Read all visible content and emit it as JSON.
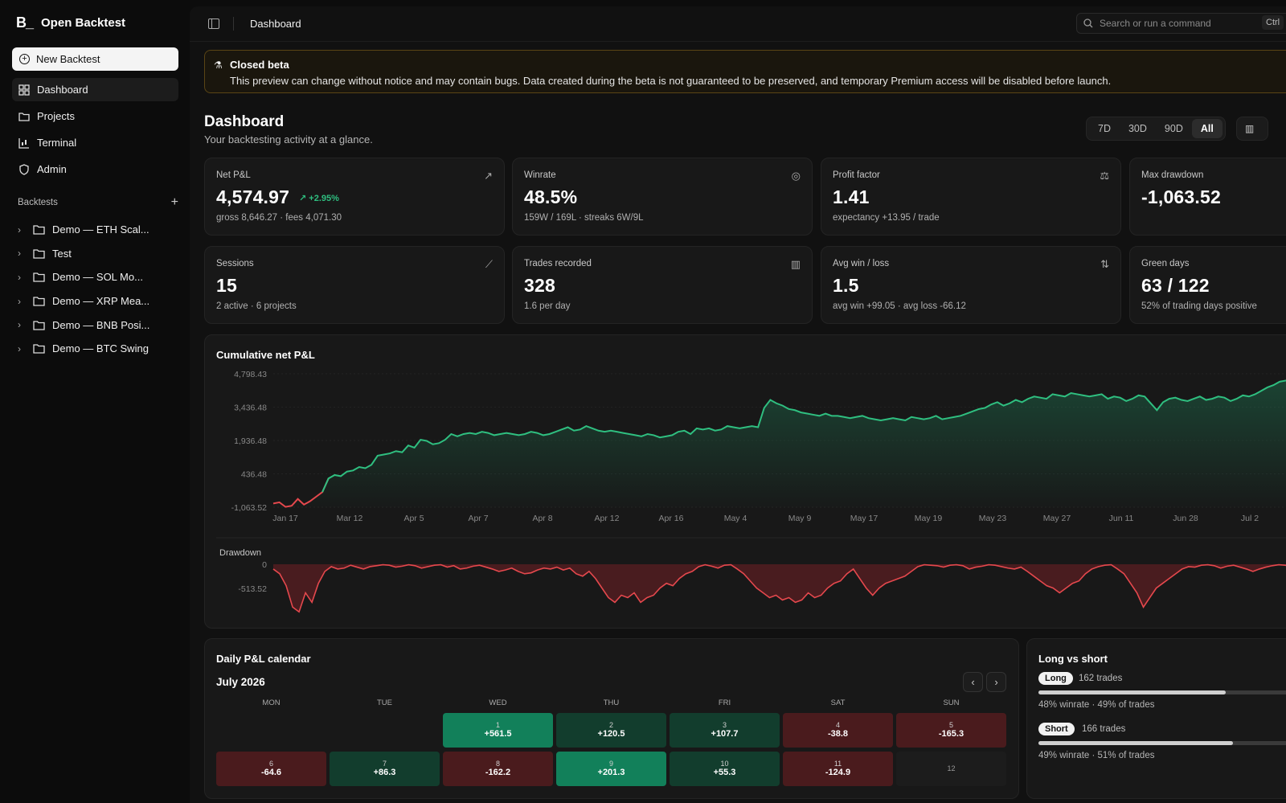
{
  "app": {
    "name": "Open Backtest",
    "logo": "B_"
  },
  "sidebar": {
    "new_backtest": "New Backtest",
    "nav": [
      {
        "label": "Dashboard",
        "icon": "dashboard-icon"
      },
      {
        "label": "Projects",
        "icon": "folder-icon"
      },
      {
        "label": "Terminal",
        "icon": "terminal-chart-icon"
      },
      {
        "label": "Admin",
        "icon": "shield-icon"
      }
    ],
    "backtests_header": "Backtests",
    "backtests": [
      "Demo — ETH Scal...",
      "Test",
      "Demo — SOL Mo...",
      "Demo — XRP Mea...",
      "Demo — BNB Posi...",
      "Demo — BTC Swing"
    ]
  },
  "topbar": {
    "title": "Dashboard",
    "search_placeholder": "Search or run a command",
    "shortcut": "Ctrl"
  },
  "banner": {
    "title": "Closed beta",
    "text": "This preview can change without notice and may contain bugs. Data created during the beta is not guaranteed to be preserved, and temporary Premium access will be disabled before launch."
  },
  "header": {
    "title": "Dashboard",
    "subtitle": "Your backtesting activity at a glance.",
    "ranges": [
      "7D",
      "30D",
      "90D",
      "All"
    ],
    "selected_range": "All"
  },
  "stats": [
    {
      "label": "Net P&L",
      "value": "4,574.97",
      "change": "+2.95%",
      "sub": "gross 8,646.27 · fees 4,071.30",
      "icon": "trend-up-icon"
    },
    {
      "label": "Winrate",
      "value": "48.5%",
      "sub": "159W / 169L · streaks 6W/9L",
      "icon": "target-icon"
    },
    {
      "label": "Profit factor",
      "value": "1.41",
      "sub": "expectancy +13.95 / trade",
      "icon": "scale-icon"
    },
    {
      "label": "Max drawdown",
      "value": "-1,063.52",
      "sub": "",
      "icon": ""
    },
    {
      "label": "Sessions",
      "value": "15",
      "sub": "2 active · 6 projects",
      "icon": "line-chart-icon"
    },
    {
      "label": "Trades recorded",
      "value": "328",
      "sub": "1.6 per day",
      "icon": "candles-icon"
    },
    {
      "label": "Avg win / loss",
      "value": "1.5",
      "sub": "avg win +99.05 · avg loss -66.12",
      "icon": "arrows-updown-icon"
    },
    {
      "label": "Green days",
      "value": "63 / 122",
      "sub": "52% of trading days positive",
      "icon": ""
    }
  ],
  "chart_data": [
    {
      "type": "area",
      "title": "Cumulative net P&L",
      "y_ticks": [
        "4,798.43",
        "3,436.48",
        "1,936.48",
        "436.48",
        "-1,063.52"
      ],
      "x_ticks": [
        "Jan 17",
        "Mar 12",
        "Apr 5",
        "Apr 7",
        "Apr 8",
        "Apr 12",
        "Apr 16",
        "May 4",
        "May 9",
        "May 17",
        "May 19",
        "May 23",
        "May 27",
        "Jun 11",
        "Jun 28",
        "Jul 2"
      ],
      "ylim": [
        -1063.52,
        4798.43
      ],
      "colors": {
        "positive": "#2fbf80",
        "negative": "#e5484d"
      },
      "values": [
        -900,
        -850,
        -1050,
        -1000,
        -700,
        -950,
        -800,
        -600,
        -400,
        200,
        350,
        300,
        500,
        550,
        700,
        650,
        800,
        1200,
        1250,
        1300,
        1400,
        1350,
        1650,
        1550,
        1900,
        1850,
        1700,
        1750,
        1900,
        2150,
        2050,
        2150,
        2200,
        2150,
        2250,
        2200,
        2100,
        2150,
        2200,
        2150,
        2100,
        2150,
        2250,
        2200,
        2100,
        2150,
        2250,
        2350,
        2450,
        2300,
        2350,
        2500,
        2400,
        2300,
        2250,
        2300,
        2250,
        2200,
        2150,
        2100,
        2050,
        2150,
        2100,
        2000,
        2050,
        2100,
        2250,
        2300,
        2150,
        2400,
        2350,
        2400,
        2300,
        2350,
        2500,
        2450,
        2400,
        2450,
        2500,
        2450,
        3300,
        3650,
        3500,
        3400,
        3250,
        3200,
        3100,
        3050,
        3000,
        2950,
        3050,
        2950,
        2950,
        2900,
        2850,
        2900,
        2950,
        2850,
        2800,
        2750,
        2800,
        2850,
        2800,
        2750,
        2900,
        2850,
        2800,
        2850,
        2950,
        2800,
        2850,
        2900,
        2950,
        3050,
        3150,
        3250,
        3300,
        3450,
        3550,
        3400,
        3500,
        3650,
        3550,
        3700,
        3800,
        3750,
        3700,
        3900,
        3850,
        3800,
        3950,
        3900,
        3850,
        3800,
        3850,
        3900,
        3700,
        3800,
        3750,
        3600,
        3700,
        3850,
        3800,
        3500,
        3200,
        3550,
        3700,
        3750,
        3650,
        3600,
        3700,
        3800,
        3650,
        3700,
        3800,
        3750,
        3600,
        3700,
        3850,
        3800,
        3900,
        4050,
        4200,
        4300,
        4450,
        4500,
        4550,
        4600
      ]
    },
    {
      "type": "area",
      "title": "Drawdown",
      "y_ticks": [
        "0",
        "-513.52"
      ],
      "ylim": [
        -1063.52,
        0
      ],
      "colors": {
        "line": "#e5484d"
      },
      "values": [
        -100,
        -200,
        -450,
        -900,
        -1000,
        -600,
        -800,
        -400,
        -150,
        -50,
        -100,
        -80,
        -20,
        -60,
        -100,
        -50,
        -30,
        -10,
        -20,
        -60,
        -40,
        -10,
        -30,
        -80,
        -50,
        -20,
        -10,
        -60,
        -30,
        -100,
        -80,
        -40,
        -20,
        -60,
        -100,
        -150,
        -120,
        -80,
        -150,
        -200,
        -180,
        -120,
        -80,
        -100,
        -60,
        -120,
        -80,
        -200,
        -250,
        -150,
        -300,
        -500,
        -700,
        -800,
        -650,
        -700,
        -600,
        -800,
        -700,
        -650,
        -500,
        -400,
        -450,
        -300,
        -200,
        -150,
        -50,
        -10,
        -40,
        -80,
        -20,
        -10,
        -100,
        -200,
        -350,
        -500,
        -600,
        -700,
        -650,
        -750,
        -700,
        -800,
        -750,
        -600,
        -700,
        -650,
        -500,
        -400,
        -350,
        -200,
        -100,
        -300,
        -500,
        -650,
        -500,
        -400,
        -350,
        -300,
        -250,
        -150,
        -50,
        -10,
        -20,
        -30,
        -60,
        -20,
        -10,
        -30,
        -100,
        -60,
        -40,
        -10,
        -20,
        -50,
        -80,
        -100,
        -60,
        -150,
        -250,
        -350,
        -450,
        -500,
        -600,
        -500,
        -400,
        -350,
        -200,
        -100,
        -50,
        -20,
        -10,
        -100,
        -200,
        -400,
        -600,
        -900,
        -700,
        -500,
        -400,
        -300,
        -200,
        -100,
        -50,
        -60,
        -20,
        -10,
        -30,
        -80,
        -40,
        -20,
        -60,
        -100,
        -150,
        -100,
        -60,
        -30,
        -10,
        -20,
        -50,
        -10
      ]
    }
  ],
  "calendar": {
    "title": "Daily P&L calendar",
    "month": "July 2026",
    "weekdays": [
      "MON",
      "TUE",
      "WED",
      "THU",
      "FRI",
      "SAT",
      "SUN"
    ],
    "days": [
      {
        "day": "1",
        "pnl": "+561.5",
        "col": 2,
        "row": 0,
        "tone": "pos-strong"
      },
      {
        "day": "2",
        "pnl": "+120.5",
        "col": 3,
        "row": 0,
        "tone": "pos"
      },
      {
        "day": "3",
        "pnl": "+107.7",
        "col": 4,
        "row": 0,
        "tone": "pos"
      },
      {
        "day": "4",
        "pnl": "-38.8",
        "col": 5,
        "row": 0,
        "tone": "neg"
      },
      {
        "day": "5",
        "pnl": "-165.3",
        "col": 6,
        "row": 0,
        "tone": "neg"
      },
      {
        "day": "6",
        "pnl": "-64.6",
        "col": 0,
        "row": 1,
        "tone": "neg"
      },
      {
        "day": "7",
        "pnl": "+86.3",
        "col": 1,
        "row": 1,
        "tone": "pos"
      },
      {
        "day": "8",
        "pnl": "-162.2",
        "col": 2,
        "row": 1,
        "tone": "neg"
      },
      {
        "day": "9",
        "pnl": "+201.3",
        "col": 3,
        "row": 1,
        "tone": "pos-strong"
      },
      {
        "day": "10",
        "pnl": "+55.3",
        "col": 4,
        "row": 1,
        "tone": "pos"
      },
      {
        "day": "11",
        "pnl": "-124.9",
        "col": 5,
        "row": 1,
        "tone": "neg"
      },
      {
        "day": "12",
        "pnl": "",
        "col": 6,
        "row": 1,
        "tone": "empty"
      }
    ]
  },
  "long_short": {
    "title": "Long vs short",
    "long": {
      "label": "Long",
      "trades": "162 trades",
      "sub": "48% winrate · 49% of trades",
      "share": 0.75
    },
    "short": {
      "label": "Short",
      "trades": "166 trades",
      "sub": "49% winrate · 51% of trades",
      "share": 0.78
    }
  }
}
